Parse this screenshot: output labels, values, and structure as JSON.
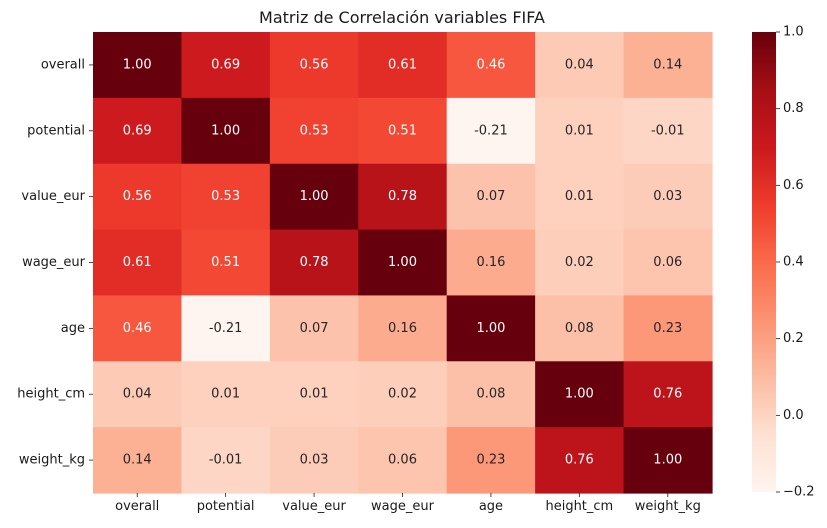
{
  "chart_data": {
    "type": "heatmap",
    "title": "Matriz de Correlación variables FIFA",
    "xlabel": "",
    "ylabel": "",
    "labels": [
      "overall",
      "potential",
      "value_eur",
      "wage_eur",
      "age",
      "height_cm",
      "weight_kg"
    ],
    "matrix": [
      [
        1.0,
        0.69,
        0.56,
        0.61,
        0.46,
        0.04,
        0.14
      ],
      [
        0.69,
        1.0,
        0.53,
        0.51,
        -0.21,
        0.01,
        -0.01
      ],
      [
        0.56,
        0.53,
        1.0,
        0.78,
        0.07,
        0.01,
        0.03
      ],
      [
        0.61,
        0.51,
        0.78,
        1.0,
        0.16,
        0.02,
        0.06
      ],
      [
        0.46,
        -0.21,
        0.07,
        0.16,
        1.0,
        0.08,
        0.23
      ],
      [
        0.04,
        0.01,
        0.01,
        0.02,
        0.08,
        1.0,
        0.76
      ],
      [
        0.14,
        -0.01,
        0.03,
        0.06,
        0.23,
        0.76,
        1.0
      ]
    ],
    "cell_text": [
      [
        "1.00",
        "0.69",
        "0.56",
        "0.61",
        "0.46",
        "0.04",
        "0.14"
      ],
      [
        "0.69",
        "1.00",
        "0.53",
        "0.51",
        "-0.21",
        "0.01",
        "-0.01"
      ],
      [
        "0.56",
        "0.53",
        "1.00",
        "0.78",
        "0.07",
        "0.01",
        "0.03"
      ],
      [
        "0.61",
        "0.51",
        "0.78",
        "1.00",
        "0.16",
        "0.02",
        "0.06"
      ],
      [
        "0.46",
        "-0.21",
        "0.07",
        "0.16",
        "1.00",
        "0.08",
        "0.23"
      ],
      [
        "0.04",
        "0.01",
        "0.01",
        "0.02",
        "0.08",
        "1.00",
        "0.76"
      ],
      [
        "0.14",
        "-0.01",
        "0.03",
        "0.06",
        "0.23",
        "0.76",
        "1.00"
      ]
    ],
    "colormap": "Reds",
    "vmin": -0.2,
    "vmax": 1.0,
    "colorbar_ticks": [
      -0.2,
      0.0,
      0.2,
      0.4,
      0.6,
      0.8,
      1.0
    ],
    "colorbar_tick_labels": [
      "−0.2",
      "0.0",
      "0.2",
      "0.4",
      "0.6",
      "0.8",
      "1.0"
    ],
    "grid": false,
    "legend": "colorbar-right"
  }
}
